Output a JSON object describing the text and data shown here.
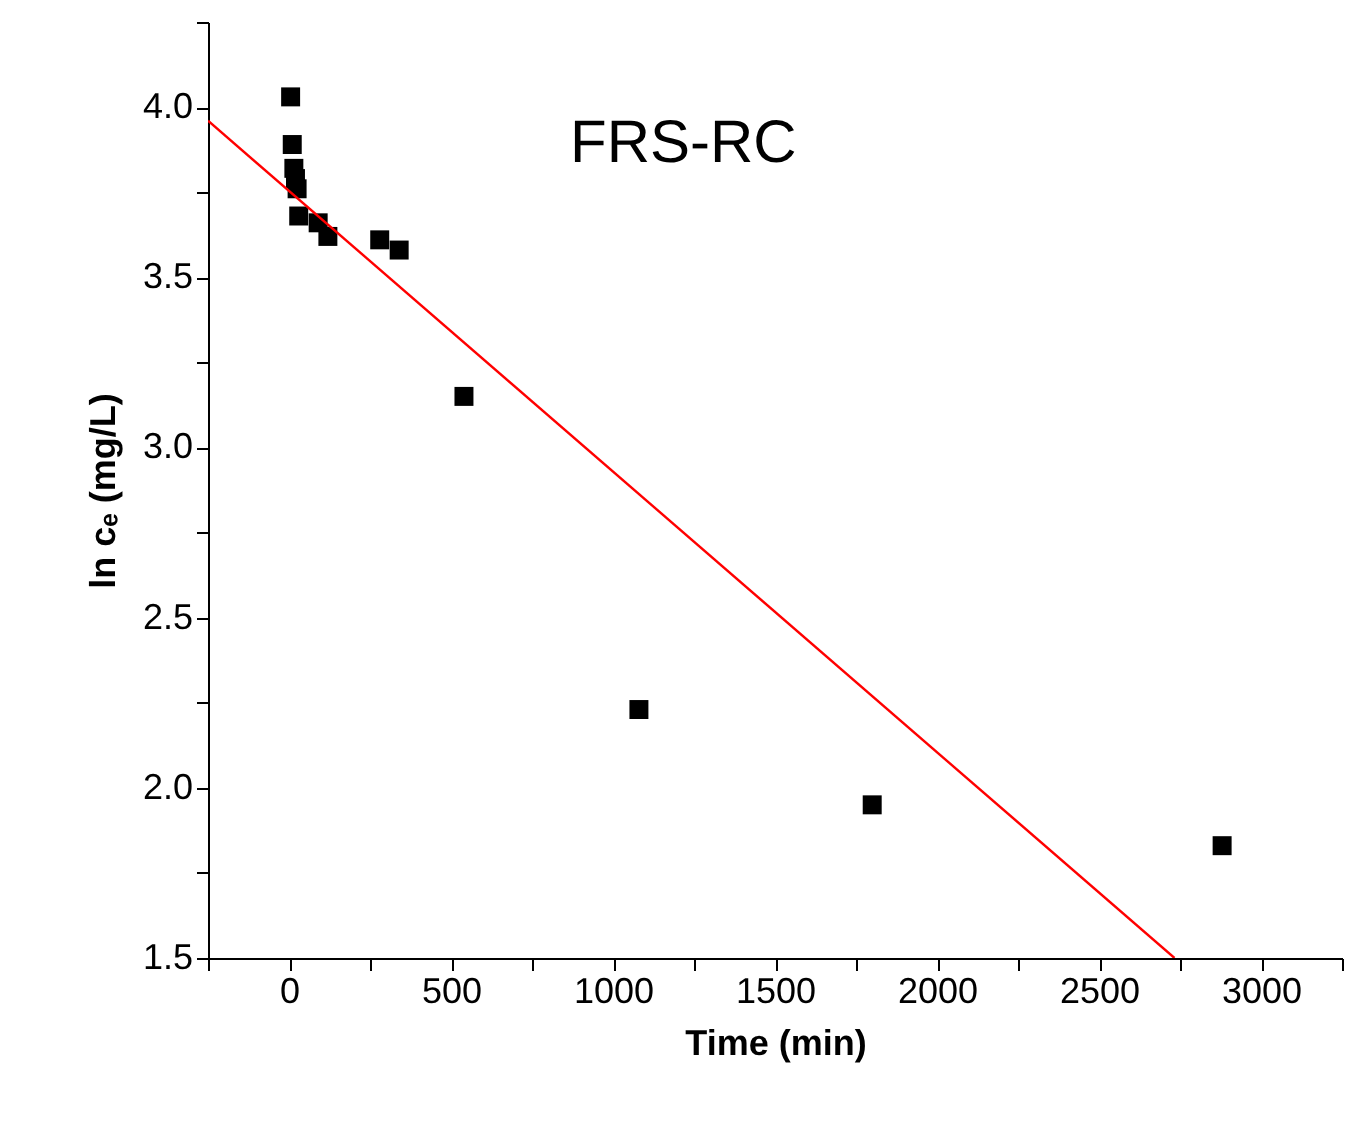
{
  "chart_data": {
    "type": "scatter",
    "xlabel": "Time (min)",
    "ylabel": "ln cₑ (mg/L)",
    "annotations": [
      "FRS-RC"
    ],
    "series": [
      {
        "color": "#000000",
        "marker": "square",
        "x": [
          5,
          10,
          15,
          20,
          25,
          30,
          90,
          120,
          280,
          340,
          540,
          1080,
          1800,
          2880
        ],
        "values": [
          4.03,
          3.89,
          3.82,
          3.79,
          3.76,
          3.68,
          3.66,
          3.62,
          3.61,
          3.58,
          3.15,
          2.23,
          1.95,
          1.83
        ]
      },
      {
        "type": "line",
        "color": "#ff0000",
        "x": [
          -250,
          2733
        ],
        "values": [
          3.96,
          1.5
        ]
      }
    ],
    "xlim": [
      -250,
      3250
    ],
    "ylim": [
      1.5,
      4.25
    ],
    "xticks": [
      {
        "value": -250,
        "label": null
      },
      0,
      {
        "value": 250,
        "label": null
      },
      500,
      {
        "value": 750,
        "label": null
      },
      1000,
      {
        "value": 1250,
        "label": null
      },
      1500,
      {
        "value": 1750,
        "label": null
      },
      2000,
      {
        "value": 2250,
        "label": null
      },
      2500,
      {
        "value": 2750,
        "label": null
      },
      3000,
      {
        "value": 3250,
        "label": null
      }
    ],
    "yticks": [
      {
        "value": 1.5,
        "label": "1.5"
      },
      {
        "value": 1.75,
        "label": null
      },
      {
        "value": 2,
        "label": "2.0"
      },
      {
        "value": 2.25,
        "label": null
      },
      {
        "value": 2.5,
        "label": "2.5"
      },
      {
        "value": 2.75,
        "label": null
      },
      {
        "value": 3,
        "label": "3.0"
      },
      {
        "value": 3.25,
        "label": null
      },
      {
        "value": 3.5,
        "label": "3.5"
      },
      {
        "value": 3.75,
        "label": null
      },
      {
        "value": 4,
        "label": "4.0"
      },
      {
        "value": 4.25,
        "label": null
      }
    ],
    "grid": false
  }
}
